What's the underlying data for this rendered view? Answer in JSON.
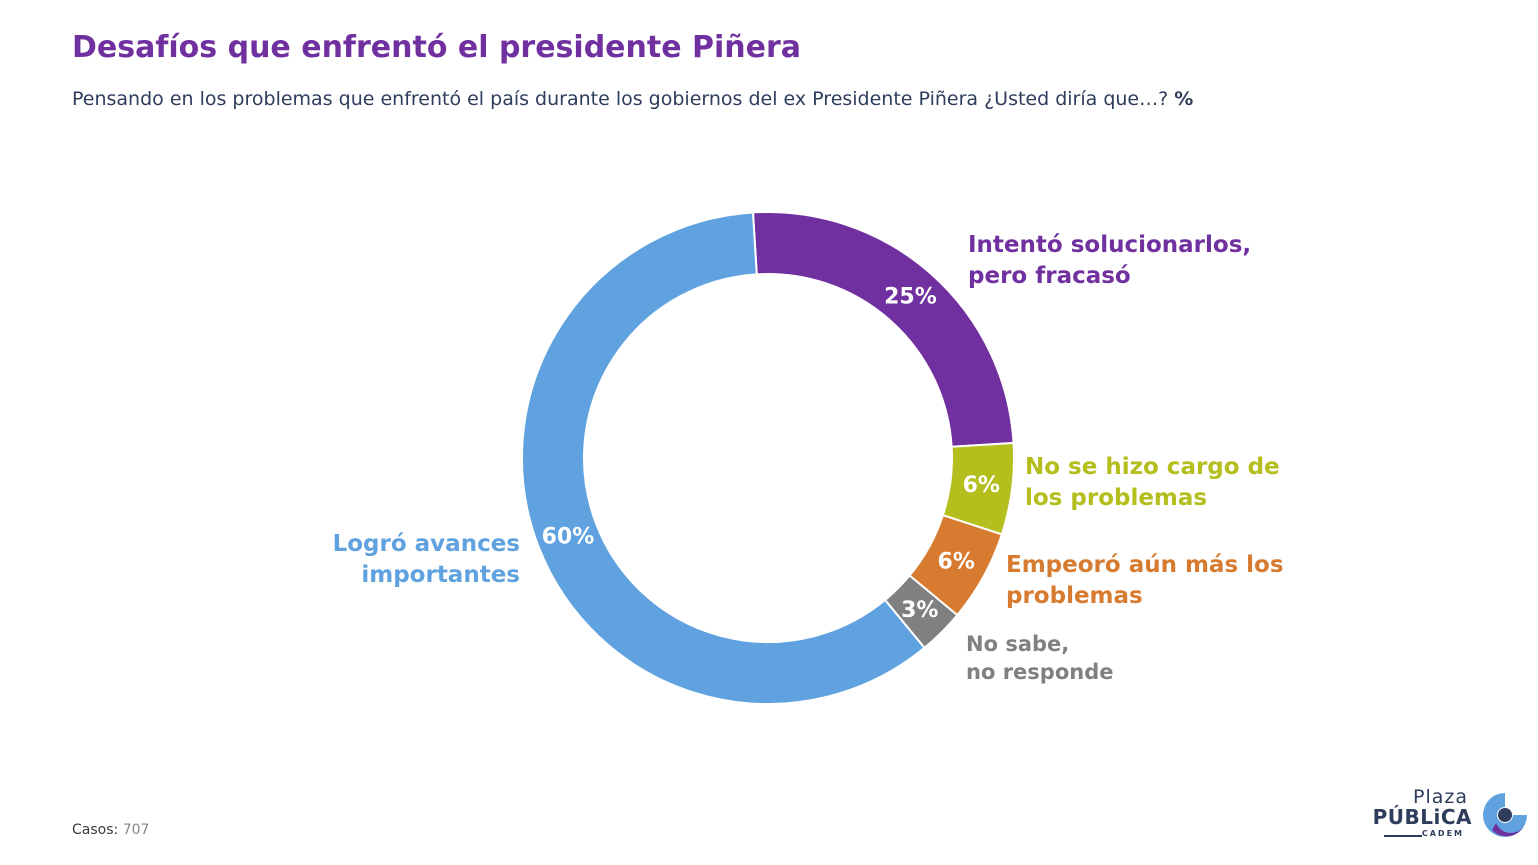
{
  "title": "Desafíos que enfrentó el presidente Piñera",
  "subtitle": {
    "text": "Pensando en los problemas que enfrentó el país durante los gobiernos del ex Presidente Piñera ¿Usted diría que…?",
    "unit": "%"
  },
  "footer": {
    "label": "Casos:",
    "value": "707"
  },
  "logo": {
    "line1": "Plaza",
    "line2": "PÚBLiCA",
    "line3": "CADEM"
  },
  "chart_data": {
    "type": "pie",
    "variant": "donut",
    "start_angle_deg": -3.5,
    "direction": "clockwise",
    "slices": [
      {
        "key": "intento",
        "label_lines": [
          "Intentó solucionarlos,",
          "pero fracasó"
        ],
        "value": 25,
        "value_label": "25%",
        "color": "#7030a0",
        "value_label_color": "#ffffff"
      },
      {
        "key": "nosehizo",
        "label_lines": [
          "No se hizo cargo de",
          "los problemas"
        ],
        "value": 6,
        "value_label": "6%",
        "color": "#b4be1c",
        "value_label_color": "#ffffff"
      },
      {
        "key": "empeoro",
        "label_lines": [
          "Empeoró aún más los",
          "problemas"
        ],
        "value": 6,
        "value_label": "6%",
        "color": "#d67b2f",
        "value_label_color": "#ffffff"
      },
      {
        "key": "nosabe",
        "label_lines": [
          "No sabe,",
          "no responde"
        ],
        "value": 3,
        "value_label": "3%",
        "color": "#808080",
        "value_label_color": "#ffffff"
      },
      {
        "key": "logro",
        "label_lines": [
          "Logró avances",
          "importantes"
        ],
        "value": 60,
        "value_label": "60%",
        "color": "#5fa2df",
        "value_label_color": "#ffffff"
      }
    ]
  }
}
